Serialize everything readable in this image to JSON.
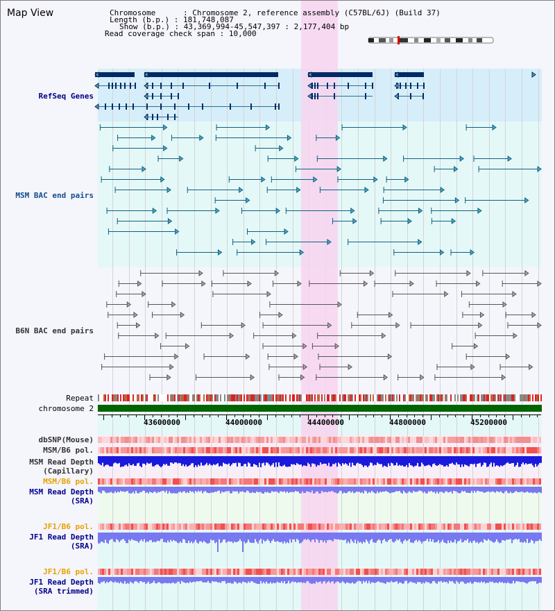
{
  "title": "Map View",
  "info": {
    "chromosome_label": "Chromosome",
    "chromosome_value": "Chromosome 2, reference assembly (C57BL/6J) (Build 37)",
    "length_label": "Length (b.p.)",
    "length_value": "181,748,087",
    "show_label": "Show (b.p.)",
    "show_value": "43,369,994-45,547,397 : 2,177,404 bp",
    "coverage_label": "Read coverage check span",
    "coverage_value": "10,000"
  },
  "tracks": {
    "refseq": "RefSeq Genes",
    "msm_bac": "MSM BAC end pairs",
    "b6n_bac": "B6N BAC end pairs",
    "repeat": "Repeat",
    "chromosome": "chromosome 2",
    "dbsnp": "dbSNP(Mouse)",
    "msm_b6_pol_1": "MSM/B6 pol.",
    "msm_read_depth_cap_1": "MSM Read Depth",
    "msm_read_depth_cap_2": "(Capillary)",
    "msm_b6_pol_2": "MSM/B6 pol.",
    "msm_read_depth_sra_1": "MSM Read Depth",
    "msm_read_depth_sra_2": "(SRA)",
    "jf1_b6_pol_1": "JF1/B6 pol.",
    "jf1_read_depth_sra_1": "JF1 Read Depth",
    "jf1_read_depth_sra_2": "(SRA)",
    "jf1_b6_pol_2": "JF1/B6 pol.",
    "jf1_read_depth_trim_1": "JF1 Read Depth",
    "jf1_read_depth_trim_2": "(SRA trimmed)"
  },
  "axis": {
    "ticks": [
      "43600000",
      "44000000",
      "44400000",
      "44800000",
      "45200000"
    ]
  },
  "colors": {
    "refseq_bg": "#d6eefa",
    "bac_bg": "#e4f8f8",
    "highlight": "#f8d4f0",
    "gene": "#002a66",
    "msm_bac": "#0f5f7f",
    "b6n_bac": "#555555",
    "chromosome": "#006400",
    "depth_capillary": "#1a1adc",
    "depth_sra": "#7878f0"
  }
}
